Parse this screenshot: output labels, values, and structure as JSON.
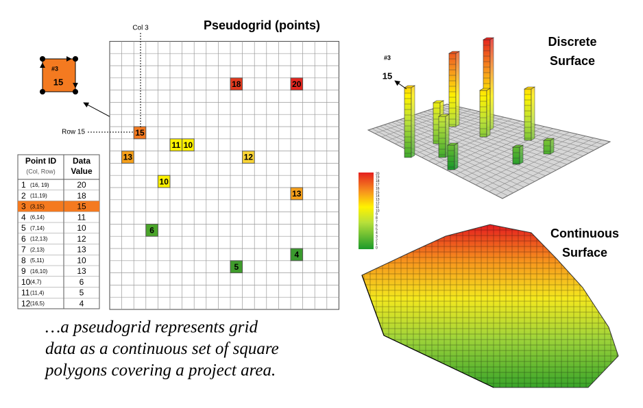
{
  "grid": {
    "title": "Pseudogrid (points)",
    "col_label": "Col 3",
    "row_label": "Row 15",
    "columns": 19,
    "rows": 22
  },
  "inset": {
    "id": "#3",
    "value": "15"
  },
  "table": {
    "headers": [
      [
        "Point ID",
        "(Col, Row)"
      ],
      [
        "Data",
        "Value"
      ]
    ],
    "rows": [
      [
        1,
        "(16, 19)",
        20
      ],
      [
        2,
        "(11,19)",
        18
      ],
      [
        3,
        "(3,15)",
        15
      ],
      [
        4,
        "(6,14)",
        11
      ],
      [
        5,
        "(7,14)",
        10
      ],
      [
        6,
        "(12,13)",
        12
      ],
      [
        7,
        "(2,13)",
        13
      ],
      [
        8,
        "(5,11)",
        10
      ],
      [
        9,
        "(16,10)",
        13
      ],
      [
        10,
        "(4,7)",
        6
      ],
      [
        11,
        "(11,4)",
        5
      ],
      [
        12,
        "(16,5)",
        4
      ]
    ],
    "colors": [
      "#e4261f",
      "#e23a1e",
      "#f47a20",
      "#fff200",
      "#fff200",
      "#fbd535",
      "#f6a01a",
      "#fff200",
      "#f6a01a",
      "#4aa52a",
      "#3f9c2c",
      "#3a9a2e"
    ],
    "highlight_row": 2,
    "highlight_color": "#f47a20"
  },
  "caption": [
    "…a pseudogrid represents grid",
    "data as a continuous set of square",
    "polygons covering a project area."
  ],
  "discrete": {
    "title": [
      "Discrete",
      "Surface"
    ],
    "id": "#3",
    "value": "15"
  },
  "continuous": {
    "title": [
      "Continuous",
      "Surface"
    ]
  },
  "legend": {
    "labels": [
      20,
      19,
      18,
      17,
      16,
      15,
      14,
      13,
      12,
      11,
      10,
      9,
      8,
      7,
      6,
      5,
      4,
      3,
      2,
      1,
      0
    ]
  }
}
